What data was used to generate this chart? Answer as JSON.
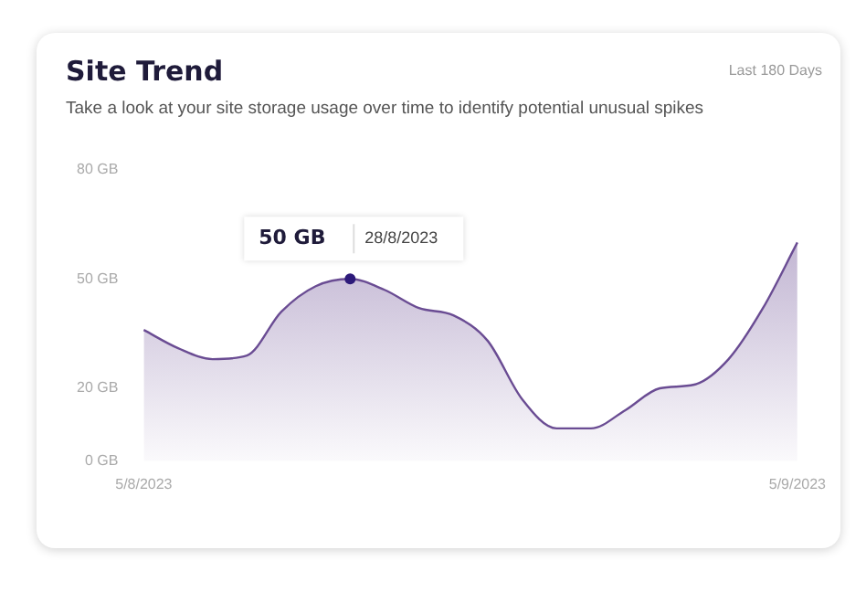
{
  "chart_data": {
    "type": "area",
    "title": "Site Trend",
    "subtitle": "Take a look at your site storage usage over time to identify potential unusual spikes",
    "categories": [
      "5/8/2023",
      null,
      null,
      null,
      null,
      null,
      null,
      null,
      null,
      null,
      null,
      null,
      null,
      null,
      null,
      null,
      null,
      null,
      null,
      "5/9/2023"
    ],
    "series": [
      {
        "color": "#6a4c93",
        "values": [
          36,
          31,
          28,
          29,
          41,
          48,
          50,
          47,
          42,
          40,
          33,
          17,
          9,
          9,
          14,
          20,
          21,
          28,
          42,
          60
        ]
      }
    ],
    "ylim": [
      0,
      80
    ],
    "yticks": [
      {
        "value": 0,
        "label": "0 GB"
      },
      {
        "value": 20,
        "label": "20 GB"
      },
      {
        "value": 50,
        "label": "50 GB"
      },
      {
        "value": 80,
        "label": "80 GB"
      }
    ],
    "grid": false,
    "legend": false,
    "marker": "none",
    "annotations": [
      "Last 180 Days",
      "50 GB",
      "28/8/2023"
    ]
  }
}
